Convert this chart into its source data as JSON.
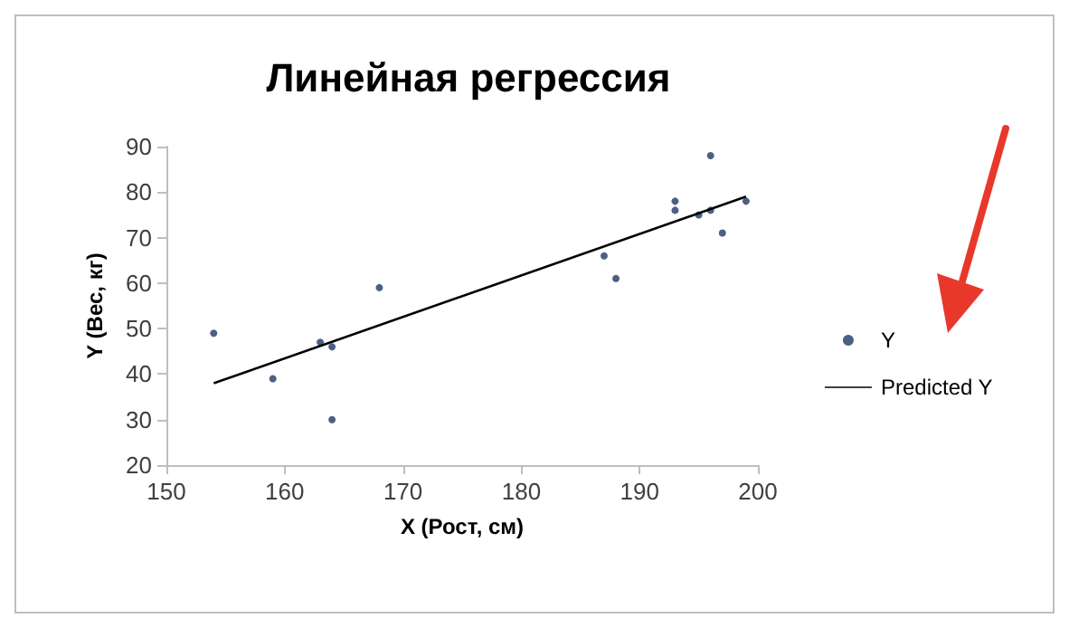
{
  "chart_data": {
    "type": "scatter",
    "title": "Линейная регрессия",
    "xlabel": "X (Рост, см)",
    "ylabel": "Y (Вес, кг)",
    "xlim": [
      150,
      200
    ],
    "xticks": [
      150,
      160,
      170,
      180,
      190,
      200
    ],
    "ylim": [
      20,
      90
    ],
    "yticks": [
      20,
      30,
      40,
      50,
      60,
      70,
      80,
      90
    ],
    "grid": false,
    "legend": "right",
    "marker": "circle",
    "series": [
      {
        "name": "Y",
        "color": "#1f3864",
        "x": [
          154,
          159,
          163,
          164,
          164,
          168,
          187,
          188,
          193,
          193,
          195,
          196,
          196,
          197,
          199
        ],
        "values": [
          49,
          39,
          47,
          46,
          30,
          59,
          66,
          61,
          78,
          76,
          75,
          88,
          76,
          71,
          78
        ]
      },
      {
        "name": "Predicted Y",
        "type": "line",
        "color": "#000000",
        "x": [
          154,
          199
        ],
        "values": [
          38,
          79
        ],
        "marker": "none",
        "line_style": "solid"
      }
    ]
  }
}
